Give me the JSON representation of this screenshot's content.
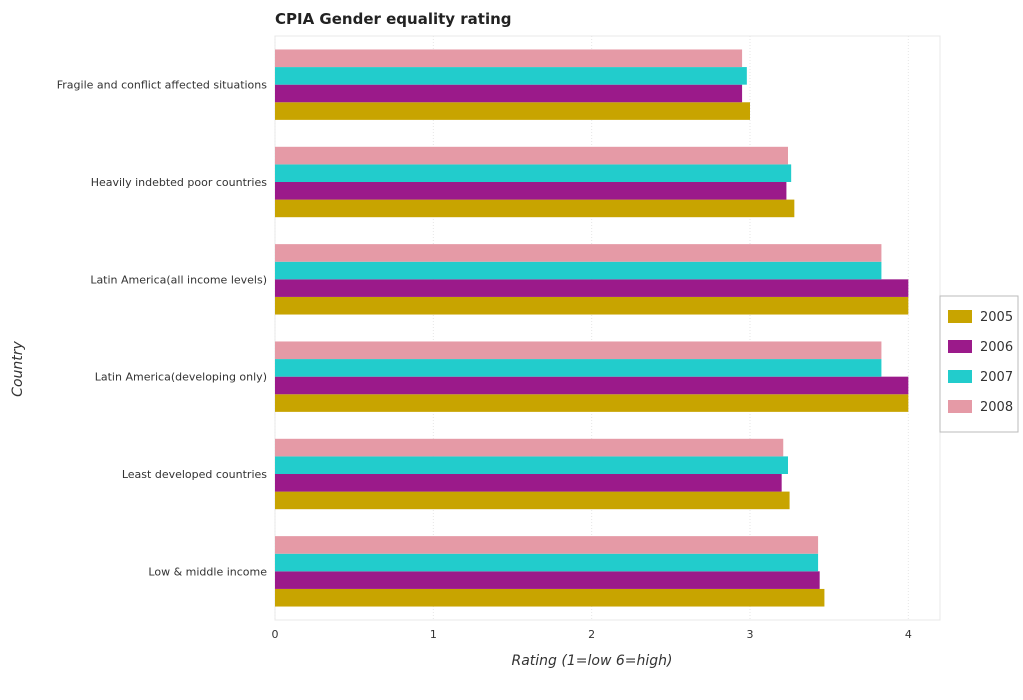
{
  "chart_data": {
    "type": "bar",
    "orientation": "horizontal",
    "title": "CPIA Gender equality rating",
    "xlabel": "Rating (1=low 6=high)",
    "ylabel": "Country",
    "xlim": [
      0,
      4.2
    ],
    "xticks": [
      "0",
      "1",
      "2",
      "3",
      "4"
    ],
    "categories": [
      "Fragile and conflict affected situations",
      "Heavily indebted poor countries",
      "Latin America(all income levels)",
      "Latin America(developing only)",
      "Least developed countries",
      "Low & middle income"
    ],
    "series": [
      {
        "name": "2005",
        "color": "#c8a400",
        "values": [
          3.0,
          3.28,
          4.0,
          4.0,
          3.25,
          3.47
        ]
      },
      {
        "name": "2006",
        "color": "#9b1a8a",
        "values": [
          2.95,
          3.23,
          4.0,
          4.0,
          3.2,
          3.44
        ]
      },
      {
        "name": "2007",
        "color": "#22cccc",
        "values": [
          2.98,
          3.26,
          3.83,
          3.83,
          3.24,
          3.43
        ]
      },
      {
        "name": "2008",
        "color": "#e59aa6",
        "values": [
          2.95,
          3.24,
          3.83,
          3.83,
          3.21,
          3.43
        ]
      }
    ],
    "grid": "vertical",
    "legend": "right"
  }
}
